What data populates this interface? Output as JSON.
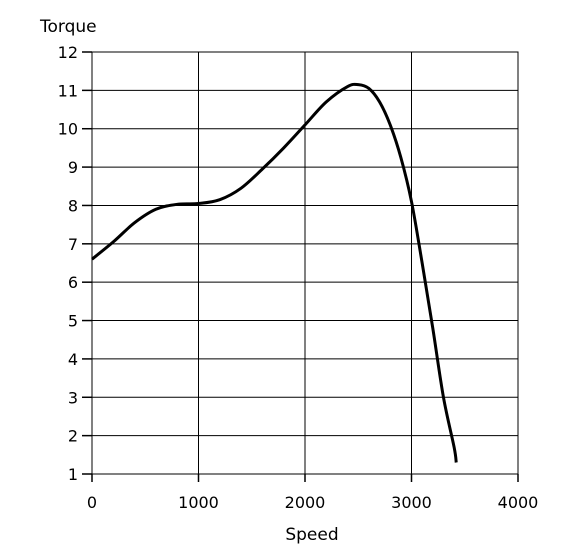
{
  "chart_data": {
    "type": "line",
    "xlabel": "Speed",
    "ylabel": "Torque",
    "xlim": [
      0,
      4000
    ],
    "ylim": [
      1,
      12
    ],
    "xticks": [
      0,
      1000,
      2000,
      3000,
      4000
    ],
    "yticks": [
      1,
      2,
      3,
      4,
      5,
      6,
      7,
      8,
      9,
      10,
      11,
      12
    ],
    "grid": true,
    "series": [
      {
        "x": [
          0,
          200,
          400,
          600,
          800,
          1000,
          1200,
          1400,
          1600,
          1800,
          2000,
          2200,
          2400,
          2500,
          2600,
          2700,
          2800,
          2900,
          3000,
          3100,
          3200,
          3300,
          3400,
          3420
        ],
        "y": [
          6.6,
          7.05,
          7.55,
          7.9,
          8.03,
          8.05,
          8.15,
          8.45,
          8.95,
          9.5,
          10.1,
          10.7,
          11.1,
          11.15,
          11.05,
          10.7,
          10.1,
          9.25,
          8.1,
          6.5,
          4.8,
          3.0,
          1.7,
          1.3
        ],
        "color": "#000000"
      }
    ]
  }
}
